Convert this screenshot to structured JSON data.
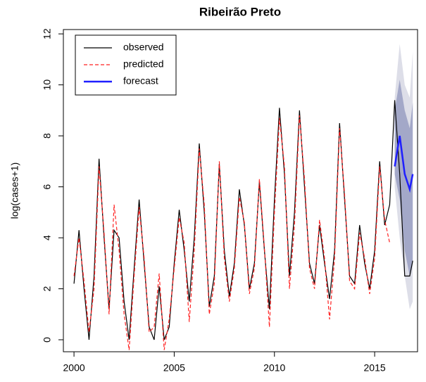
{
  "chart_data": {
    "type": "line",
    "title": "Ribeirão Preto",
    "y_label": "log(cases+1)",
    "xlim": [
      1999.47,
      2017.14
    ],
    "ylim": [
      -0.47,
      12.17
    ],
    "xticks": [
      2000,
      2005,
      2010,
      2015
    ],
    "yticks": [
      0,
      2,
      4,
      6,
      8,
      10,
      12
    ],
    "legend": "top-left",
    "bands": [
      {
        "color": "#dddee8",
        "x": [
          2016,
          2016.25,
          2016.5,
          2016.75,
          2016.9
        ],
        "lower": [
          6.0,
          4.0,
          2.5,
          1.2,
          1.5
        ],
        "upper": [
          9.5,
          11.6,
          10.0,
          9.5,
          11.3
        ]
      },
      {
        "color": "#a3a8c8",
        "x": [
          2016,
          2016.25,
          2016.5,
          2016.75,
          2016.9
        ],
        "lower": [
          6.5,
          5.5,
          3.5,
          2.5,
          3.0
        ],
        "upper": [
          9.0,
          10.2,
          9.0,
          8.3,
          9.3
        ]
      }
    ],
    "series": [
      {
        "name": "observed",
        "color": "#000000",
        "style": "solid",
        "width": 1.2,
        "x": [
          2000,
          2000.25,
          2000.5,
          2000.75,
          2001,
          2001.25,
          2001.5,
          2001.75,
          2002,
          2002.25,
          2002.5,
          2002.75,
          2003,
          2003.25,
          2003.5,
          2003.75,
          2004,
          2004.25,
          2004.5,
          2004.75,
          2005,
          2005.25,
          2005.5,
          2005.75,
          2006,
          2006.25,
          2006.5,
          2006.75,
          2007,
          2007.25,
          2007.5,
          2007.75,
          2008,
          2008.25,
          2008.5,
          2008.75,
          2009,
          2009.25,
          2009.5,
          2009.75,
          2010,
          2010.25,
          2010.5,
          2010.75,
          2011,
          2011.25,
          2011.5,
          2011.75,
          2012,
          2012.25,
          2012.5,
          2012.75,
          2013,
          2013.25,
          2013.5,
          2013.75,
          2014,
          2014.25,
          2014.5,
          2014.75,
          2015,
          2015.25,
          2015.5,
          2015.75,
          2016,
          2016.25,
          2016.5,
          2016.75,
          2016.9
        ],
        "values": [
          2.2,
          4.3,
          2.0,
          0,
          2.5,
          7.1,
          4.0,
          1.2,
          4.3,
          4.0,
          1.5,
          0,
          2.8,
          5.5,
          3.0,
          0.5,
          0,
          2.1,
          0,
          0.5,
          3.0,
          5.1,
          3.5,
          1.5,
          4.0,
          7.7,
          5.0,
          1.3,
          2.5,
          6.9,
          3.5,
          1.7,
          3.0,
          5.9,
          4.5,
          2.0,
          3.0,
          6.2,
          3.5,
          1.2,
          5.5,
          9.1,
          6.5,
          2.5,
          5.0,
          9.0,
          6.0,
          3.0,
          2.2,
          4.5,
          3.0,
          1.6,
          3.5,
          8.5,
          5.5,
          2.5,
          2.2,
          4.5,
          3.0,
          2.0,
          3.5,
          7.0,
          4.5,
          5.3,
          9.4,
          6.5,
          2.5,
          2.5,
          3.1
        ]
      },
      {
        "name": "predicted",
        "color": "#ff2020",
        "style": "dashed",
        "width": 1.2,
        "x": [
          2000,
          2000.25,
          2000.5,
          2000.75,
          2001,
          2001.25,
          2001.5,
          2001.75,
          2002,
          2002.25,
          2002.5,
          2002.75,
          2003,
          2003.25,
          2003.5,
          2003.75,
          2004,
          2004.25,
          2004.5,
          2004.75,
          2005,
          2005.25,
          2005.5,
          2005.75,
          2006,
          2006.25,
          2006.5,
          2006.75,
          2007,
          2007.25,
          2007.5,
          2007.75,
          2008,
          2008.25,
          2008.5,
          2008.75,
          2009,
          2009.25,
          2009.5,
          2009.75,
          2010,
          2010.25,
          2010.5,
          2010.75,
          2011,
          2011.25,
          2011.5,
          2011.75,
          2012,
          2012.25,
          2012.5,
          2012.75,
          2013,
          2013.25,
          2013.5,
          2013.75,
          2014,
          2014.25,
          2014.5,
          2014.75,
          2015,
          2015.25,
          2015.5,
          2015.75
        ],
        "values": [
          2.5,
          4.0,
          2.3,
          0.3,
          2.0,
          6.8,
          4.2,
          1.0,
          5.3,
          3.5,
          1.0,
          -0.4,
          2.5,
          5.2,
          3.2,
          0.3,
          0.5,
          2.6,
          -0.4,
          0.8,
          2.8,
          4.8,
          3.8,
          0.7,
          3.5,
          7.5,
          5.3,
          1.0,
          2.2,
          7.0,
          3.2,
          1.5,
          2.8,
          5.6,
          4.6,
          1.8,
          2.8,
          6.3,
          3.6,
          0.5,
          5.0,
          8.7,
          6.8,
          2.0,
          4.5,
          8.8,
          6.3,
          2.8,
          2.0,
          4.7,
          3.2,
          0.8,
          3.2,
          8.3,
          5.7,
          2.3,
          2.0,
          4.2,
          3.2,
          1.8,
          3.2,
          6.8,
          4.7,
          3.8
        ]
      },
      {
        "name": "forecast",
        "color": "#1f1fff",
        "style": "solid",
        "width": 2.5,
        "x": [
          2016,
          2016.25,
          2016.5,
          2016.75,
          2016.9
        ],
        "values": [
          6.8,
          8.0,
          6.5,
          5.9,
          6.5
        ]
      }
    ]
  }
}
